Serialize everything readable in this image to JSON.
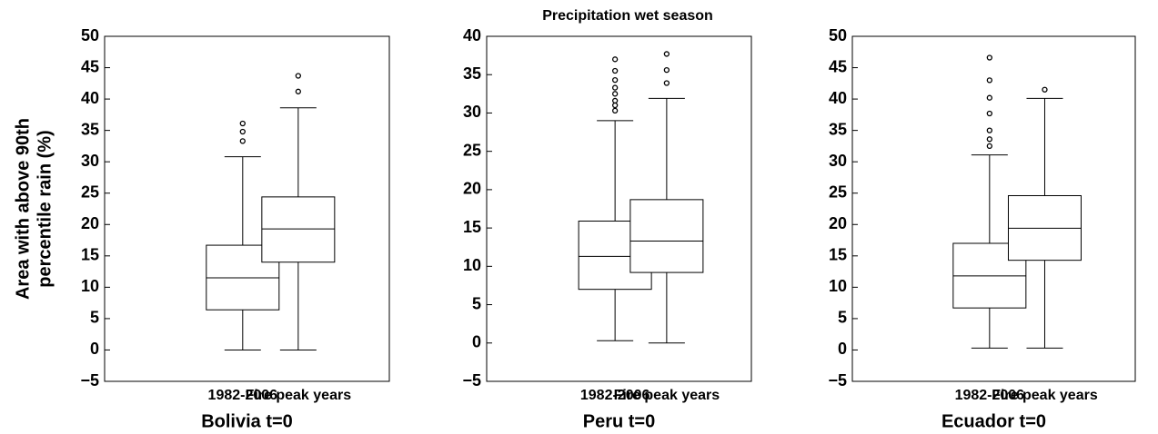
{
  "title": "Precipitation wet season",
  "chart_data": [
    {
      "type": "box",
      "ylabel": [
        "Area with above 90th",
        "percentile rain (%)"
      ],
      "xlabel": "Bolivia t=0",
      "categories": [
        "1982-2006",
        "Fire peak years"
      ],
      "boxes": [
        {
          "whislo": 0,
          "q1": 6.4,
          "med": 11.5,
          "q3": 16.7,
          "whishi": 30.8,
          "fliers": [
            36.1,
            34.8,
            33.3
          ]
        },
        {
          "whislo": 0,
          "q1": 14.0,
          "med": 19.3,
          "q3": 24.4,
          "whishi": 38.6,
          "fliers": [
            43.7,
            41.2
          ]
        }
      ],
      "ylim": [
        -5,
        50
      ],
      "yticks": [
        {
          "value": -5,
          "label": "−5"
        },
        0,
        5,
        10,
        15,
        20,
        25,
        30,
        35,
        40,
        45,
        50
      ]
    },
    {
      "type": "box",
      "xlabel": "Peru t=0",
      "categories": [
        "1982-2006",
        "Fire peak years"
      ],
      "boxes": [
        {
          "whislo": 0.3,
          "q1": 7.0,
          "med": 11.3,
          "q3": 15.9,
          "whishi": 29.0,
          "fliers": [
            37.0,
            35.5,
            34.3,
            33.3,
            32.5,
            31.6,
            31.0,
            30.3
          ]
        },
        {
          "whislo": 0,
          "q1": 9.2,
          "med": 13.3,
          "q3": 18.7,
          "whishi": 31.9,
          "fliers": [
            37.7,
            35.6,
            33.9
          ]
        }
      ],
      "ylim": [
        -5,
        40
      ],
      "yticks": [
        {
          "value": -5,
          "label": "−5"
        },
        0,
        5,
        10,
        15,
        20,
        25,
        30,
        35,
        40
      ]
    },
    {
      "type": "box",
      "xlabel": "Ecuador t=0",
      "categories": [
        "1982-2006",
        "Fire peak years"
      ],
      "boxes": [
        {
          "whislo": 0.3,
          "q1": 6.7,
          "med": 11.8,
          "q3": 17.0,
          "whishi": 31.1,
          "fliers": [
            46.6,
            43.0,
            40.2,
            37.7,
            35.0,
            33.6,
            32.5
          ]
        },
        {
          "whislo": 0.3,
          "q1": 14.3,
          "med": 19.4,
          "q3": 24.6,
          "whishi": 40.1,
          "fliers": [
            41.5
          ]
        }
      ],
      "ylim": [
        -5,
        50
      ],
      "yticks": [
        {
          "value": -5,
          "label": "−5"
        },
        0,
        5,
        10,
        15,
        20,
        25,
        30,
        35,
        40,
        45,
        50
      ]
    }
  ]
}
